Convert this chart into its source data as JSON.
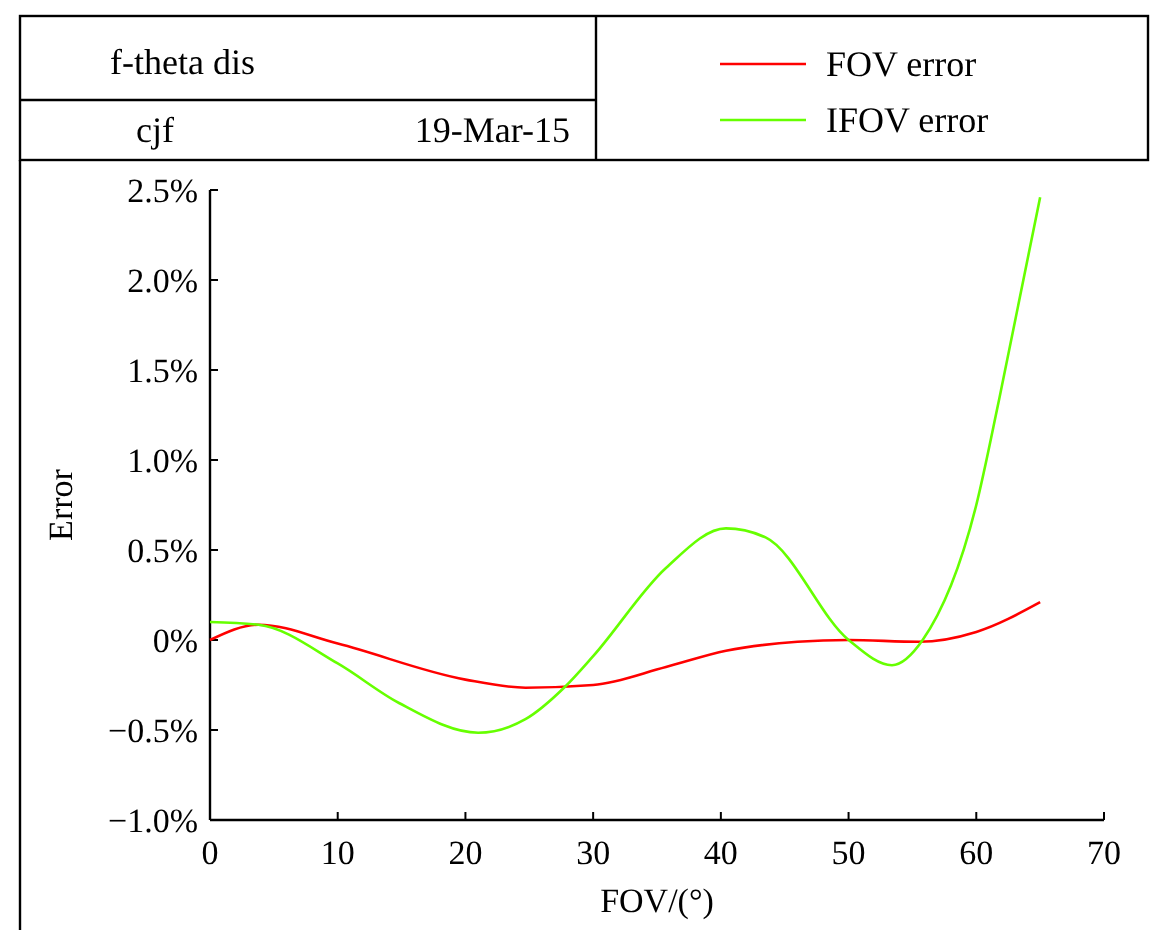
{
  "chart_data": {
    "type": "line",
    "title": "f-theta dis",
    "annotations": [
      "cjf",
      "19-Mar-15"
    ],
    "xlabel": "FOV/(°)",
    "ylabel": "Error",
    "xlim": [
      0,
      70
    ],
    "xticks": [
      0,
      10,
      20,
      30,
      40,
      50,
      60,
      70
    ],
    "ylim": [
      -1,
      2.5
    ],
    "yticks": [
      {
        "value": -1,
        "label": "−1.0%"
      },
      {
        "value": -0.5,
        "label": "−0.5%"
      },
      {
        "value": 0,
        "label": "0%"
      },
      {
        "value": 0.5,
        "label": "0.5%"
      },
      {
        "value": 1,
        "label": "1.0%"
      },
      {
        "value": 1.5,
        "label": "1.5%"
      },
      {
        "value": 2,
        "label": "2.0%"
      },
      {
        "value": 2.5,
        "label": "2.5%"
      }
    ],
    "legend": "top right",
    "grid": false,
    "series": [
      {
        "name": "FOV error",
        "color": "#ff0000",
        "x": [
          0,
          3.8,
          10,
          20,
          24.7,
          30,
          35.7,
          40.4,
          46,
          50,
          55.5,
          60,
          65
        ],
        "values": [
          0,
          0.085,
          -0.02,
          -0.22,
          -0.265,
          -0.25,
          -0.15,
          -0.06,
          -0.01,
          0,
          -0.01,
          0.045,
          0.21
        ]
      },
      {
        "name": "IFOV error",
        "color": "#66ff00",
        "x": [
          0,
          3.8,
          10,
          14.8,
          21,
          24.7,
          27.8,
          30,
          35.7,
          40.4,
          43.5,
          50,
          53.4,
          55.8,
          60,
          61.8,
          65
        ],
        "values": [
          0.1,
          0.085,
          -0.13,
          -0.35,
          -0.515,
          -0.44,
          -0.26,
          -0.09,
          0.4,
          0.62,
          0.57,
          0,
          -0.14,
          0,
          0.75,
          1.34,
          2.46
        ]
      }
    ]
  }
}
